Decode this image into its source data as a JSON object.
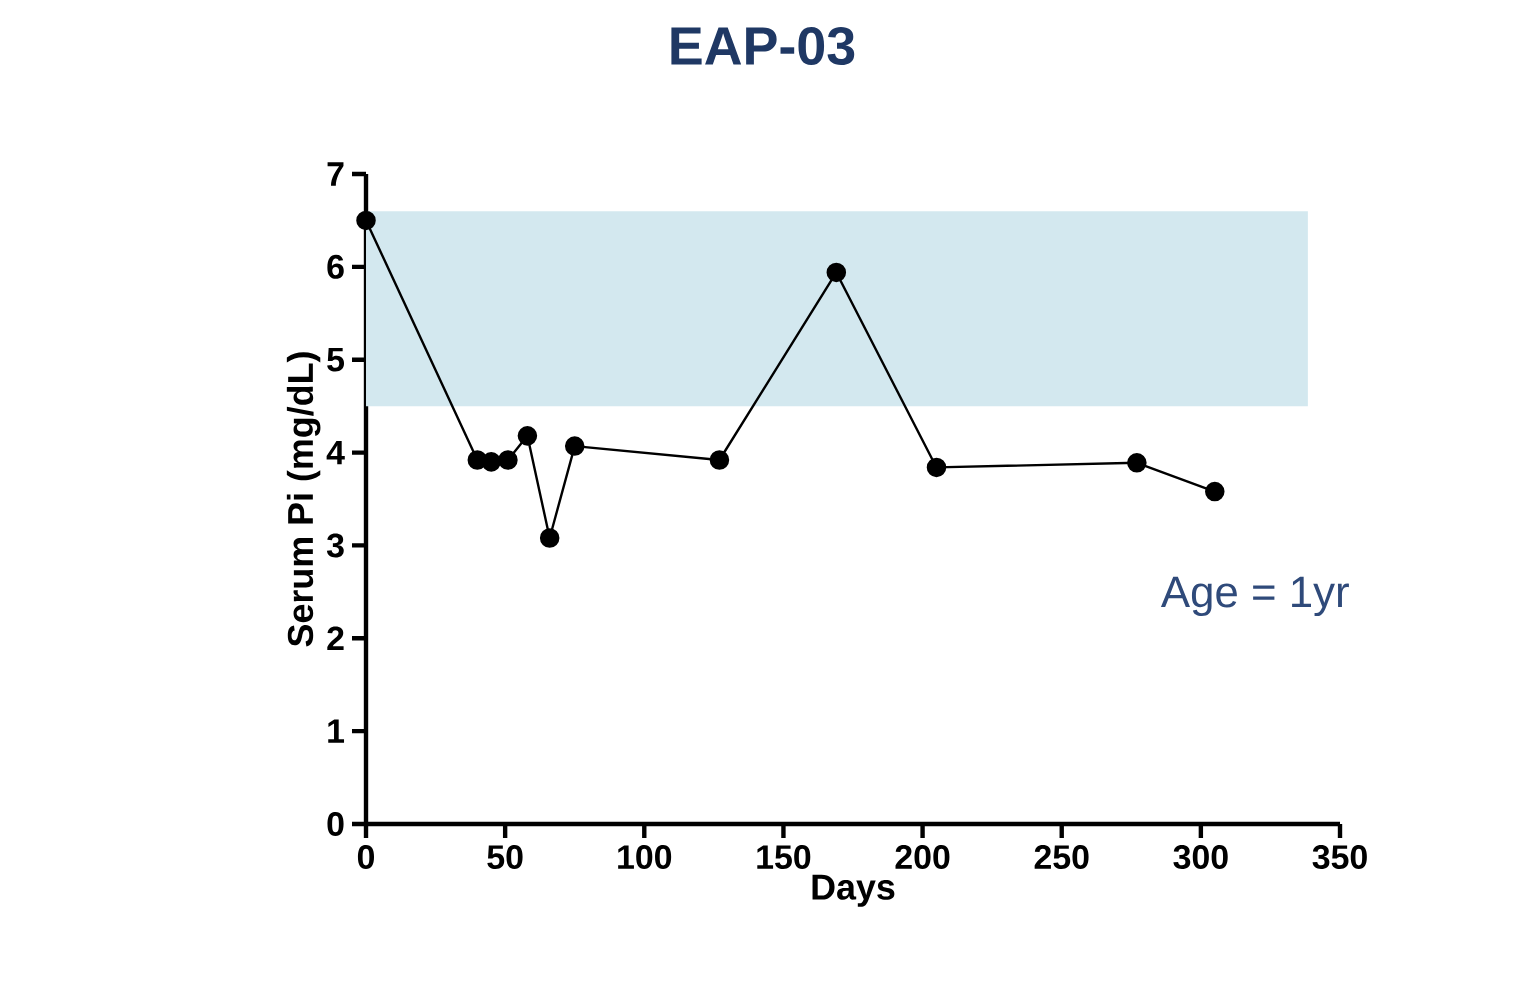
{
  "chart_data": {
    "type": "line",
    "title": "EAP-03",
    "xlabel": "Days",
    "ylabel": "Serum Pi (mg/dL)",
    "x": [
      0,
      40,
      45,
      51,
      58,
      66,
      75,
      127,
      169,
      205,
      277,
      305
    ],
    "series": [
      {
        "color": "#000000",
        "values": [
          6.5,
          3.92,
          3.9,
          3.92,
          4.18,
          3.08,
          4.07,
          3.92,
          5.94,
          3.84,
          3.89,
          3.58
        ]
      }
    ],
    "xlim": [
      0,
      350
    ],
    "xticks": [
      0,
      50,
      100,
      150,
      200,
      250,
      300,
      350
    ],
    "ylim": [
      0,
      7
    ],
    "yticks": [
      0,
      1,
      2,
      3,
      4,
      5,
      6,
      7
    ],
    "bands": [
      {
        "axis": "y",
        "from": 4.5,
        "to": 6.6,
        "color": "#d3e8ef"
      }
    ],
    "annotations": [
      "Age = 1yr"
    ],
    "marker": "circle",
    "line_style": "solid"
  }
}
